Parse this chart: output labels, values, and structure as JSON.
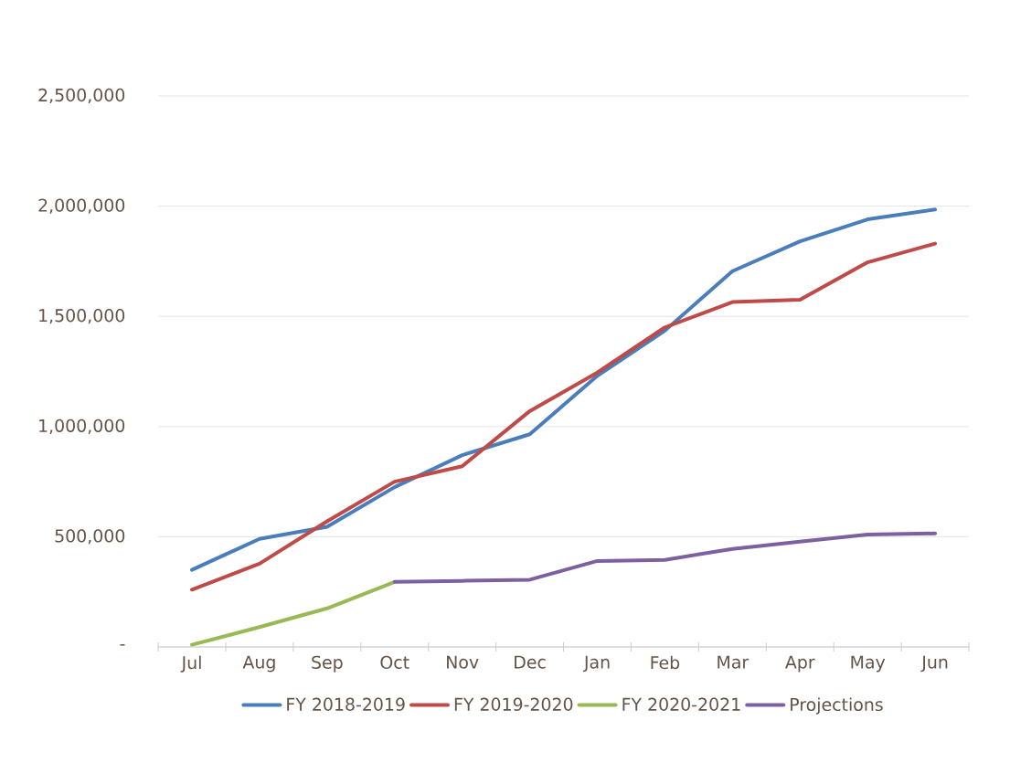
{
  "chart_data": {
    "type": "line",
    "categories": [
      "Jul",
      "Aug",
      "Sep",
      "Oct",
      "Nov",
      "Dec",
      "Jan",
      "Feb",
      "Mar",
      "Apr",
      "May",
      "Jun"
    ],
    "series": [
      {
        "name": "FY 2018-2019",
        "color": "#4a7ebb",
        "values": [
          350000,
          490000,
          545000,
          725000,
          870000,
          965000,
          1230000,
          1435000,
          1705000,
          1840000,
          1940000,
          1985000
        ]
      },
      {
        "name": "FY 2019-2020",
        "color": "#be4b48",
        "values": [
          260000,
          378000,
          570000,
          750000,
          820000,
          1070000,
          1245000,
          1450000,
          1565000,
          1575000,
          1745000,
          1830000
        ]
      },
      {
        "name": "FY 2020-2021",
        "color": "#98b954",
        "values": [
          10000,
          90000,
          175000,
          295000,
          null,
          null,
          null,
          null,
          null,
          null,
          null,
          null
        ]
      },
      {
        "name": "Projections",
        "color": "#7d60a0",
        "values": [
          null,
          null,
          null,
          295000,
          300000,
          305000,
          390000,
          395000,
          445000,
          478000,
          510000,
          515000
        ]
      }
    ],
    "ylim": [
      0,
      2500000
    ],
    "yticks": [
      {
        "value": 0,
        "label": "-"
      },
      {
        "value": 500000,
        "label": "500,000"
      },
      {
        "value": 1000000,
        "label": "1,000,000"
      },
      {
        "value": 1500000,
        "label": "1,500,000"
      },
      {
        "value": 2000000,
        "label": "2,000,000"
      },
      {
        "value": 2500000,
        "label": "2,500,000"
      }
    ],
    "grid": "y",
    "legend": "bottom",
    "marker": "none",
    "line_style": "solid"
  }
}
